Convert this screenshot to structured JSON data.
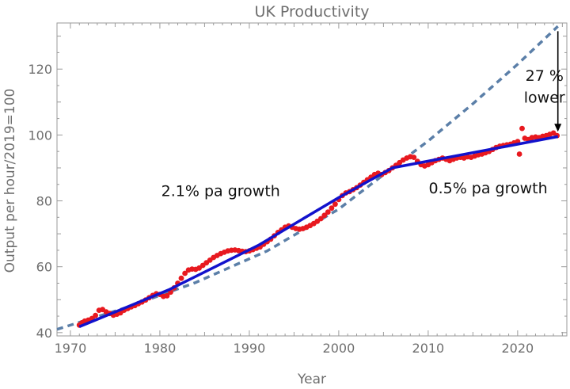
{
  "chart_data": {
    "type": "scatter",
    "title": "UK Productivity",
    "xlabel": "Year",
    "ylabel": "Output per hour/2019=100",
    "xlim": [
      1968.5,
      2025.5
    ],
    "ylim": [
      39,
      134
    ],
    "xticks": [
      1970,
      1980,
      1990,
      2000,
      2010,
      2020
    ],
    "yticks": [
      40,
      60,
      80,
      100,
      120
    ],
    "grid": false,
    "series": [
      {
        "kind": "scatter",
        "color": "#e8191f",
        "points": [
          [
            1971.0,
            42.3
          ],
          [
            1971.3,
            43.0
          ],
          [
            1971.6,
            43.5
          ],
          [
            1972.0,
            43.8
          ],
          [
            1972.4,
            44.3
          ],
          [
            1972.8,
            45.2
          ],
          [
            1973.2,
            46.8
          ],
          [
            1973.6,
            47.0
          ],
          [
            1974.0,
            46.3
          ],
          [
            1974.4,
            45.8
          ],
          [
            1974.8,
            45.3
          ],
          [
            1975.2,
            45.6
          ],
          [
            1975.6,
            46.0
          ],
          [
            1976.0,
            46.8
          ],
          [
            1976.4,
            47.3
          ],
          [
            1976.8,
            47.8
          ],
          [
            1977.2,
            48.2
          ],
          [
            1977.6,
            48.8
          ],
          [
            1978.0,
            49.3
          ],
          [
            1978.4,
            49.9
          ],
          [
            1978.8,
            50.6
          ],
          [
            1979.2,
            51.3
          ],
          [
            1979.6,
            51.8
          ],
          [
            1980.0,
            51.6
          ],
          [
            1980.4,
            51.0
          ],
          [
            1980.8,
            51.2
          ],
          [
            1981.2,
            52.3
          ],
          [
            1981.6,
            53.6
          ],
          [
            1982.0,
            55.0
          ],
          [
            1982.4,
            56.5
          ],
          [
            1982.8,
            58.0
          ],
          [
            1983.2,
            59.0
          ],
          [
            1983.6,
            59.3
          ],
          [
            1984.0,
            59.2
          ],
          [
            1984.4,
            59.6
          ],
          [
            1984.8,
            60.4
          ],
          [
            1985.2,
            61.2
          ],
          [
            1985.6,
            62.0
          ],
          [
            1986.0,
            62.8
          ],
          [
            1986.4,
            63.4
          ],
          [
            1986.8,
            64.0
          ],
          [
            1987.2,
            64.4
          ],
          [
            1987.6,
            64.8
          ],
          [
            1988.0,
            65.0
          ],
          [
            1988.4,
            65.1
          ],
          [
            1988.8,
            64.9
          ],
          [
            1989.2,
            64.7
          ],
          [
            1989.6,
            64.6
          ],
          [
            1990.0,
            64.8
          ],
          [
            1990.4,
            65.2
          ],
          [
            1990.8,
            65.6
          ],
          [
            1991.2,
            66.0
          ],
          [
            1991.6,
            66.8
          ],
          [
            1992.0,
            67.6
          ],
          [
            1992.4,
            68.4
          ],
          [
            1992.8,
            69.4
          ],
          [
            1993.2,
            70.4
          ],
          [
            1993.6,
            71.2
          ],
          [
            1994.0,
            72.0
          ],
          [
            1994.4,
            72.4
          ],
          [
            1994.8,
            72.0
          ],
          [
            1995.2,
            71.6
          ],
          [
            1995.6,
            71.4
          ],
          [
            1996.0,
            71.6
          ],
          [
            1996.4,
            72.0
          ],
          [
            1996.8,
            72.5
          ],
          [
            1997.2,
            73.1
          ],
          [
            1997.6,
            73.8
          ],
          [
            1998.0,
            74.6
          ],
          [
            1998.4,
            75.6
          ],
          [
            1998.8,
            76.6
          ],
          [
            1999.2,
            77.8
          ],
          [
            1999.6,
            79.0
          ],
          [
            2000.0,
            80.4
          ],
          [
            2000.4,
            81.6
          ],
          [
            2000.8,
            82.4
          ],
          [
            2001.2,
            82.8
          ],
          [
            2001.6,
            83.4
          ],
          [
            2002.0,
            84.0
          ],
          [
            2002.4,
            84.8
          ],
          [
            2002.8,
            85.6
          ],
          [
            2003.2,
            86.4
          ],
          [
            2003.6,
            87.2
          ],
          [
            2004.0,
            88.0
          ],
          [
            2004.4,
            88.4
          ],
          [
            2004.8,
            88.0
          ],
          [
            2005.2,
            88.6
          ],
          [
            2005.6,
            89.2
          ],
          [
            2006.0,
            90.0
          ],
          [
            2006.4,
            90.8
          ],
          [
            2006.8,
            91.6
          ],
          [
            2007.2,
            92.4
          ],
          [
            2007.6,
            93.0
          ],
          [
            2008.0,
            93.4
          ],
          [
            2008.4,
            93.2
          ],
          [
            2008.8,
            92.0
          ],
          [
            2009.2,
            91.0
          ],
          [
            2009.6,
            90.6
          ],
          [
            2010.0,
            91.0
          ],
          [
            2010.4,
            91.6
          ],
          [
            2010.8,
            92.2
          ],
          [
            2011.2,
            92.6
          ],
          [
            2011.6,
            93.0
          ],
          [
            2012.0,
            92.6
          ],
          [
            2012.4,
            92.2
          ],
          [
            2012.8,
            92.6
          ],
          [
            2013.2,
            93.0
          ],
          [
            2013.6,
            93.2
          ],
          [
            2014.0,
            93.0
          ],
          [
            2014.4,
            93.4
          ],
          [
            2014.8,
            93.2
          ],
          [
            2015.2,
            93.6
          ],
          [
            2015.6,
            94.0
          ],
          [
            2016.0,
            94.2
          ],
          [
            2016.4,
            94.6
          ],
          [
            2016.8,
            95.0
          ],
          [
            2017.2,
            95.6
          ],
          [
            2017.6,
            96.2
          ],
          [
            2018.0,
            96.6
          ],
          [
            2018.4,
            96.8
          ],
          [
            2018.8,
            97.0
          ],
          [
            2019.2,
            97.2
          ],
          [
            2019.6,
            97.6
          ],
          [
            2020.0,
            98.0
          ],
          [
            2020.2,
            94.2
          ],
          [
            2020.5,
            102.0
          ],
          [
            2020.8,
            99.0
          ],
          [
            2021.2,
            98.6
          ],
          [
            2021.6,
            99.2
          ],
          [
            2022.0,
            99.4
          ],
          [
            2022.4,
            99.2
          ],
          [
            2022.8,
            99.6
          ],
          [
            2023.2,
            99.8
          ],
          [
            2023.6,
            100.2
          ],
          [
            2024.0,
            100.6
          ],
          [
            2024.4,
            99.8
          ]
        ]
      },
      {
        "kind": "line",
        "color": "#1212cc",
        "points": [
          [
            1971.0,
            41.8
          ],
          [
            1981.0,
            53.0
          ],
          [
            1991.0,
            66.5
          ],
          [
            2000.0,
            81.0
          ],
          [
            2006.0,
            90.0
          ],
          [
            2024.5,
            99.5
          ]
        ]
      },
      {
        "kind": "dashed-curve",
        "color": "#5b7fa8",
        "points": [
          [
            1968.5,
            41.0
          ],
          [
            1976.0,
            47.4
          ],
          [
            1984.0,
            55.2
          ],
          [
            1992.0,
            64.8
          ],
          [
            2000.0,
            77.5
          ],
          [
            2006.0,
            90.0
          ],
          [
            2010.0,
            98.2
          ],
          [
            2015.0,
            109.5
          ],
          [
            2020.0,
            121.5
          ],
          [
            2024.5,
            133.0
          ]
        ]
      }
    ],
    "annotations": [
      {
        "text": "2.1% pa growth",
        "x": 1986.8,
        "y": 81.5
      },
      {
        "text": "0.5% pa growth",
        "x": 2016.7,
        "y": 82.3
      },
      {
        "text": "27 %",
        "x": 2023.0,
        "y": 116.5
      },
      {
        "text": "lower",
        "x": 2023.0,
        "y": 109.8
      }
    ],
    "arrow": {
      "x": 2024.5,
      "from_y": 131.5,
      "to_y": 101.0,
      "color": "#000000"
    }
  }
}
